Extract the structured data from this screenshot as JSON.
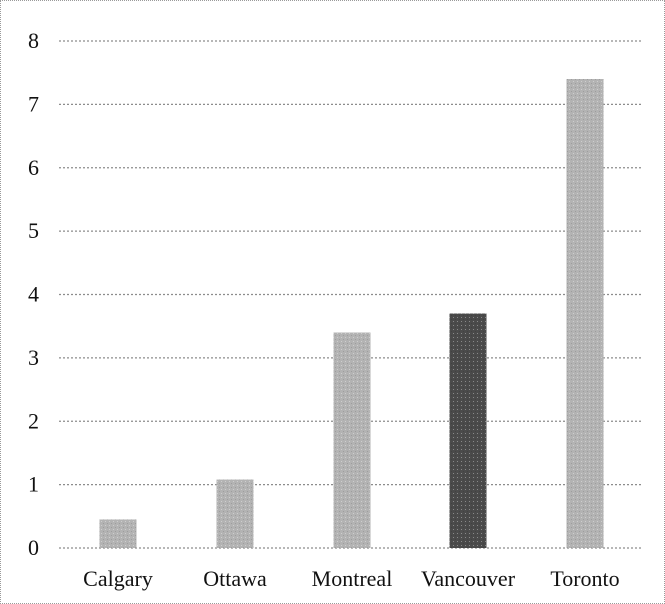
{
  "chart_data": {
    "type": "bar",
    "title": "",
    "xlabel": "",
    "ylabel": "",
    "categories": [
      "Calgary",
      "Ottawa",
      "Montreal",
      "Vancouver",
      "Toronto"
    ],
    "values": [
      0.45,
      1.08,
      3.4,
      3.7,
      7.4
    ],
    "ylim": [
      0,
      8
    ],
    "yticks": [
      "0",
      "1",
      "2",
      "3",
      "4",
      "5",
      "6",
      "7",
      "8"
    ],
    "grid": true,
    "legend": "none",
    "bar_colors": [
      "#b3b3b3",
      "#b3b3b3",
      "#b3b3b3",
      "#4a4a4a",
      "#b3b3b3"
    ]
  }
}
